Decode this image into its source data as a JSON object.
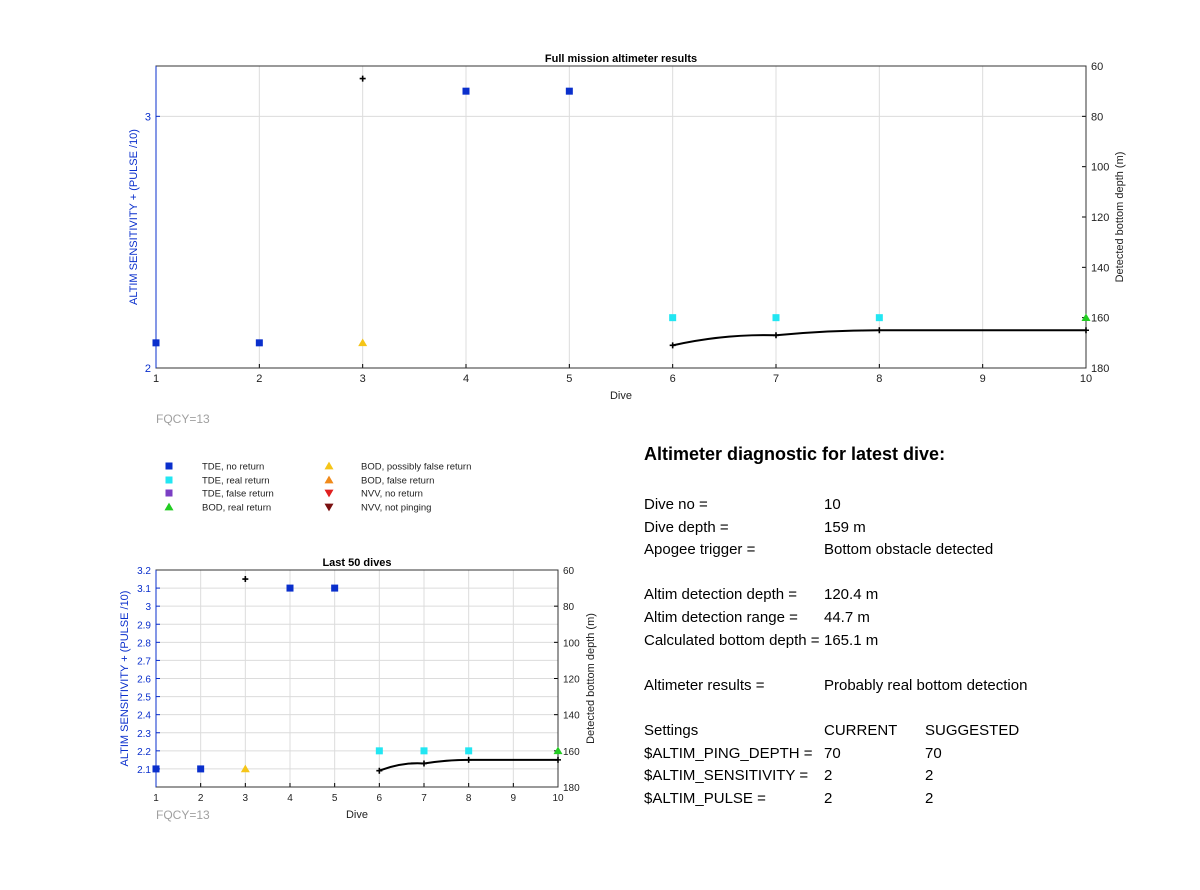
{
  "chart_data": [
    {
      "type": "scatter",
      "title": "Full mission altimeter results",
      "xlabel": "Dive",
      "ylabel": "ALTIM SENSITIVITY + (PULSE /10)",
      "y2label": "Detected bottom depth (m)",
      "xlim": [
        1,
        10
      ],
      "ylim": [
        2,
        3.2
      ],
      "y2lim": [
        60,
        180
      ],
      "y2_reversed": true,
      "xticks": [
        "1",
        "2",
        "3",
        "4",
        "5",
        "6",
        "7",
        "8",
        "9",
        "10"
      ],
      "yticks": [
        "2",
        "3"
      ],
      "y2ticks": [
        "60",
        "80",
        "100",
        "120",
        "140",
        "160",
        "180"
      ],
      "grid": true,
      "footnote": "FQCY=13",
      "series": [
        {
          "name": "TDE, no return",
          "axis": "left",
          "marker": "square",
          "color": "#0a2fcc",
          "points": [
            [
              1,
              2.1
            ],
            [
              2,
              2.1
            ],
            [
              4,
              3.1
            ],
            [
              5,
              3.1
            ]
          ]
        },
        {
          "name": "TDE, real return",
          "axis": "left",
          "marker": "square",
          "color": "#22e6f2",
          "points": [
            [
              6,
              2.2
            ],
            [
              7,
              2.2
            ],
            [
              8,
              2.2
            ]
          ]
        },
        {
          "name": "BOD, real return",
          "axis": "left",
          "marker": "triangle",
          "color": "#22cc22",
          "points": [
            [
              10,
              2.2
            ]
          ]
        },
        {
          "name": "BOD, possibly false return",
          "axis": "left",
          "marker": "triangle",
          "color": "#f5c518",
          "points": [
            [
              3,
              2.1
            ]
          ]
        },
        {
          "name": "NVV, not pinging",
          "axis": "left",
          "marker": "plus",
          "color": "#000000",
          "points": [
            [
              3,
              3.15
            ]
          ]
        },
        {
          "axis": "right",
          "marker": "line",
          "color": "#000000",
          "points": [
            [
              6,
              171
            ],
            [
              7,
              167
            ],
            [
              8,
              165
            ],
            [
              10,
              165
            ]
          ]
        }
      ]
    },
    {
      "type": "scatter",
      "title": "Last 50 dives",
      "xlabel": "Dive",
      "ylabel": "ALTIM SENSITIVITY + (PULSE /10)",
      "y2label": "Detected bottom depth (m)",
      "xlim": [
        1,
        10
      ],
      "ylim": [
        2.0,
        3.2
      ],
      "y2lim": [
        60,
        180
      ],
      "y2_reversed": true,
      "xticks": [
        "1",
        "2",
        "3",
        "4",
        "5",
        "6",
        "7",
        "8",
        "9",
        "10"
      ],
      "yticks": [
        "2.1",
        "2.2",
        "2.3",
        "2.4",
        "2.5",
        "2.6",
        "2.7",
        "2.8",
        "2.9",
        "3",
        "3.1",
        "3.2"
      ],
      "y2ticks": [
        "60",
        "80",
        "100",
        "120",
        "140",
        "160",
        "180"
      ],
      "grid": true,
      "footnote": "FQCY=13",
      "series": [
        {
          "name": "TDE, no return",
          "axis": "left",
          "marker": "square",
          "color": "#0a2fcc",
          "points": [
            [
              1,
              2.1
            ],
            [
              2,
              2.1
            ],
            [
              4,
              3.1
            ],
            [
              5,
              3.1
            ]
          ]
        },
        {
          "name": "TDE, real return",
          "axis": "left",
          "marker": "square",
          "color": "#22e6f2",
          "points": [
            [
              6,
              2.2
            ],
            [
              7,
              2.2
            ],
            [
              8,
              2.2
            ]
          ]
        },
        {
          "name": "BOD, real return",
          "axis": "left",
          "marker": "triangle",
          "color": "#22cc22",
          "points": [
            [
              10,
              2.2
            ]
          ]
        },
        {
          "name": "BOD, possibly false return",
          "axis": "left",
          "marker": "triangle",
          "color": "#f5c518",
          "points": [
            [
              3,
              2.1
            ]
          ]
        },
        {
          "name": "NVV, not pinging",
          "axis": "left",
          "marker": "plus",
          "color": "#000000",
          "points": [
            [
              3,
              3.15
            ]
          ]
        },
        {
          "axis": "right",
          "marker": "line",
          "color": "#000000",
          "points": [
            [
              6,
              171
            ],
            [
              7,
              167
            ],
            [
              8,
              165
            ],
            [
              10,
              165
            ]
          ]
        }
      ]
    }
  ],
  "legend": {
    "items": [
      {
        "label": "TDE, no return",
        "marker": "square",
        "color": "#0a2fcc"
      },
      {
        "label": "TDE, real return",
        "marker": "square",
        "color": "#22e6f2"
      },
      {
        "label": "TDE, false return",
        "marker": "square",
        "color": "#7b3fc4"
      },
      {
        "label": "BOD, real return",
        "marker": "triangle",
        "color": "#22cc22"
      },
      {
        "label": "BOD, possibly false return",
        "marker": "triangle",
        "color": "#f5c518"
      },
      {
        "label": "BOD, false return",
        "marker": "triangle",
        "color": "#f08a1a"
      },
      {
        "label": "NVV, no return",
        "marker": "triangle-down",
        "color": "#e02020"
      },
      {
        "label": "NVV, not pinging",
        "marker": "triangle-down",
        "color": "#7a1010"
      }
    ]
  },
  "diagnostic": {
    "title": "Altimeter diagnostic for latest dive:",
    "dive_no_label": "Dive no =",
    "dive_no": "10",
    "dive_depth_label": "Dive depth =",
    "dive_depth": "159 m",
    "apogee_label": "Apogee trigger =",
    "apogee": "Bottom obstacle detected",
    "det_depth_label": "Altim detection depth =",
    "det_depth": "120.4 m",
    "det_range_label": "Altim detection range =",
    "det_range": "44.7 m",
    "calc_depth_label": "Calculated bottom depth =",
    "calc_depth": "165.1 m",
    "results_label": "Altimeter results =",
    "results": "Probably real bottom detection",
    "settings_label": "Settings",
    "current_label": "CURRENT",
    "suggested_label": "SUGGESTED",
    "settings": [
      {
        "name": "$ALTIM_PING_DEPTH =",
        "current": "70",
        "suggested": "70"
      },
      {
        "name": "$ALTIM_SENSITIVITY =",
        "current": "2",
        "suggested": "2"
      },
      {
        "name": "$ALTIM_PULSE =",
        "current": "2",
        "suggested": "2"
      }
    ]
  },
  "colors": {
    "left_axis": "#0a2fcc",
    "grid": "#dcdcdc",
    "footnote": "#a0a0a0"
  }
}
